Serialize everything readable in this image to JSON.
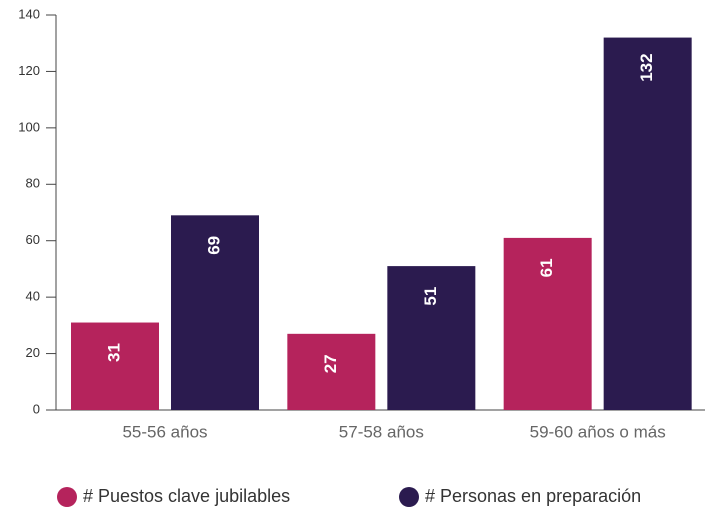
{
  "chart_data": {
    "type": "bar",
    "categories": [
      "55-56 años",
      "57-58 años",
      "59-60 años o más"
    ],
    "series": [
      {
        "name": "# Puestos clave jubilables",
        "color": "#b5235c",
        "values": [
          31,
          27,
          61
        ]
      },
      {
        "name": "# Personas en preparación",
        "color": "#2b1b4f",
        "values": [
          69,
          51,
          132
        ]
      }
    ],
    "ylim": [
      0,
      140
    ],
    "yticks": [
      0,
      20,
      40,
      60,
      80,
      100,
      120,
      140
    ],
    "grid": false,
    "legend": "bottom"
  }
}
